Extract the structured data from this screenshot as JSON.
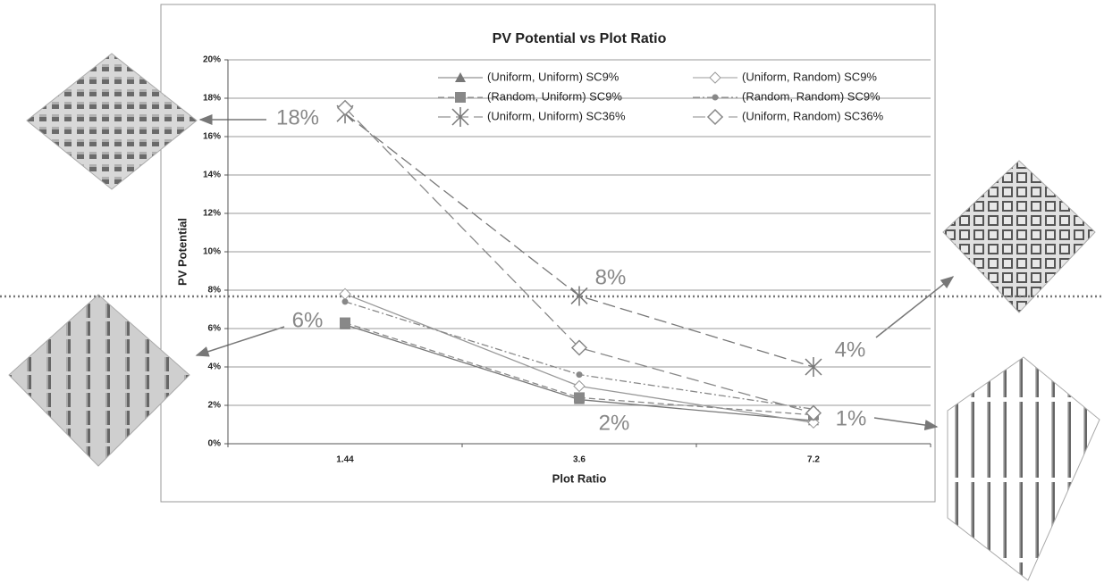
{
  "chart_data": {
    "type": "line",
    "title": "PV Potential vs Plot Ratio",
    "x_label": "Plot Ratio",
    "y_label": "PV Potential",
    "categories": [
      "1.44",
      "3.6",
      "7.2"
    ],
    "ylim": [
      0,
      20
    ],
    "yticks": [
      {
        "value": 0,
        "label": "0%"
      },
      {
        "value": 2,
        "label": "2%"
      },
      {
        "value": 4,
        "label": "4%"
      },
      {
        "value": 6,
        "label": "6%"
      },
      {
        "value": 8,
        "label": "8%"
      },
      {
        "value": 10,
        "label": "10%"
      },
      {
        "value": 12,
        "label": "12%"
      },
      {
        "value": 14,
        "label": "14%"
      },
      {
        "value": 16,
        "label": "16%"
      },
      {
        "value": 18,
        "label": "18%"
      },
      {
        "value": 20,
        "label": "20%"
      }
    ],
    "grid": true,
    "series": [
      {
        "name": "(Uniform, Uniform) SC9%",
        "color": "#777777",
        "marker": "triangle",
        "dash": "solid",
        "values": [
          6.2,
          2.3,
          1.2
        ]
      },
      {
        "name": "(Uniform, Random) SC9%",
        "color": "#999999",
        "marker": "diamond",
        "dash": "solid",
        "values": [
          7.8,
          3.0,
          1.1
        ]
      },
      {
        "name": "(Random, Uniform) SC9%",
        "color": "#888888",
        "marker": "square",
        "dash": "dash",
        "values": [
          6.3,
          2.4,
          1.5
        ]
      },
      {
        "name": "(Random, Random) SC9%",
        "color": "#888888",
        "marker": "circle",
        "dash": "dashdot",
        "values": [
          7.4,
          3.6,
          1.8
        ]
      },
      {
        "name": "(Uniform, Uniform) SC36%",
        "color": "#777777",
        "marker": "star",
        "dash": "longdash",
        "values": [
          17.2,
          7.7,
          4.0
        ]
      },
      {
        "name": "(Uniform, Random) SC36%",
        "color": "#888888",
        "marker": "bigdiamond",
        "dash": "longdash",
        "values": [
          17.5,
          5.0,
          1.6
        ]
      }
    ],
    "annotations": [
      "18%",
      "8%",
      "6%",
      "4%",
      "2%",
      "1%"
    ]
  }
}
